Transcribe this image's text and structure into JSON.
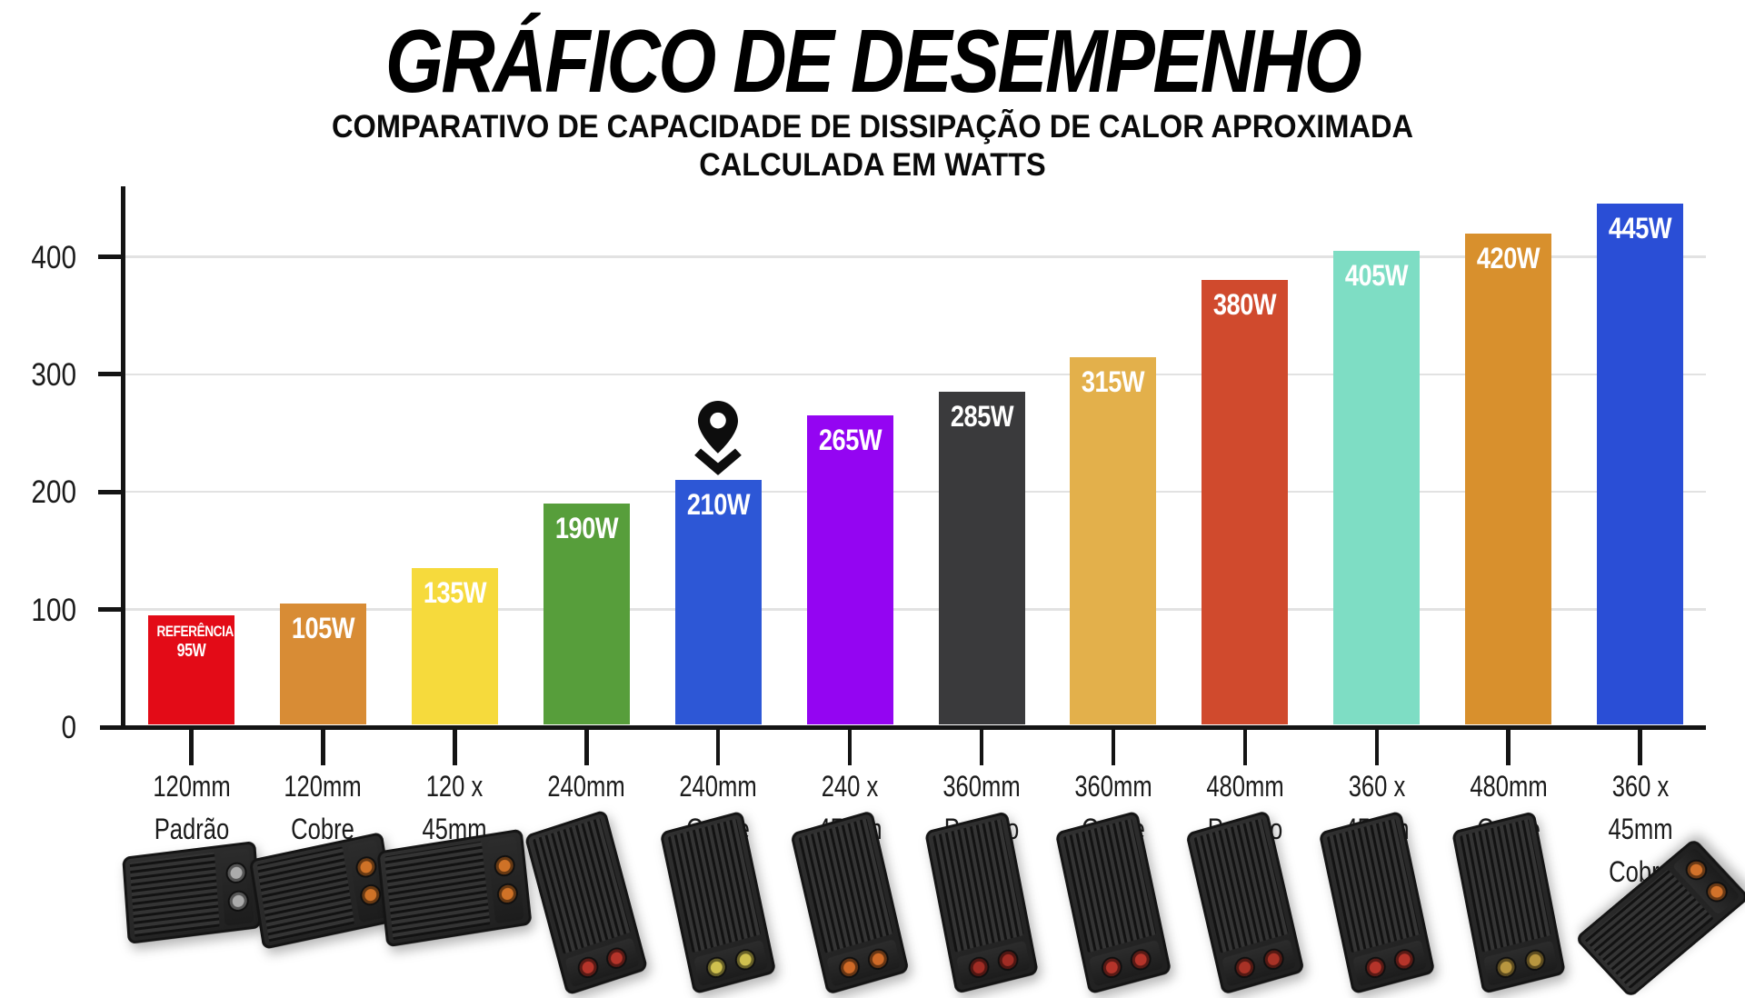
{
  "header": {
    "title": "GRÁFICO DE DESEMPENHO",
    "subtitle_line1": "COMPARATIVO DE CAPACIDADE DE DISSIPAÇÃO DE CALOR APROXIMADA",
    "subtitle_line2": "CALCULADA EM WATTS"
  },
  "chart_data": {
    "type": "bar",
    "title": "GRÁFICO DE DESEMPENHO",
    "subtitle": "COMPARATIVO DE CAPACIDADE DE DISSIPAÇÃO DE CALOR APROXIMADA CALCULADA EM WATTS",
    "unit": "watts",
    "ylim": [
      0,
      460
    ],
    "yticks": [
      0,
      100,
      200,
      300,
      400
    ],
    "grid": true,
    "legend_position": "none",
    "categories": [
      "120mm Padrão",
      "120mm Cobre",
      "120 x 45mm",
      "240mm",
      "240mm Cobre",
      "240 x 45mm",
      "360mm Padrão",
      "360mm Cobre",
      "480mm Padrão",
      "360 x 45mm",
      "480mm Cobre",
      "360 x 45mm Cobre"
    ],
    "values": [
      95,
      105,
      135,
      190,
      210,
      265,
      285,
      315,
      380,
      405,
      420,
      445
    ],
    "marker": {
      "icon": "location-pin-icon",
      "bar_category": "240mm Cobre",
      "bar_index": 4
    },
    "bars": [
      {
        "label_lines": [
          "120mm",
          "Padrão"
        ],
        "value": 95,
        "value_label": "95W",
        "value_prefix": "REFERÊNCIA",
        "color": "#e30b17",
        "marker": false,
        "product": {
          "shape": "small",
          "port_color": "#ababab"
        }
      },
      {
        "label_lines": [
          "120mm",
          "Cobre"
        ],
        "value": 105,
        "value_label": "105W",
        "color": "#d88c35",
        "marker": false,
        "product": {
          "shape": "small",
          "port_color": "#cf7227"
        }
      },
      {
        "label_lines": [
          "120 x",
          "45mm"
        ],
        "value": 135,
        "value_label": "135W",
        "color": "#f6da3c",
        "marker": false,
        "product": {
          "shape": "small",
          "port_color": "#cf7227"
        }
      },
      {
        "label_lines": [
          "240mm"
        ],
        "value": 190,
        "value_label": "190W",
        "color": "#579e3b",
        "marker": false,
        "product": {
          "shape": "long",
          "port_color": "#b5342a"
        }
      },
      {
        "label_lines": [
          "240mm",
          "Cobre"
        ],
        "value": 210,
        "value_label": "210W",
        "color": "#2d57d6",
        "marker": true,
        "product": {
          "shape": "long",
          "port_color": "#cfc04f"
        }
      },
      {
        "label_lines": [
          "240 x",
          "45mm"
        ],
        "value": 265,
        "value_label": "265W",
        "color": "#9405f2",
        "marker": false,
        "product": {
          "shape": "long",
          "port_color": "#cf6a27"
        }
      },
      {
        "label_lines": [
          "360mm",
          "Padrão"
        ],
        "value": 285,
        "value_label": "285W",
        "color": "#3a3a3c",
        "marker": false,
        "product": {
          "shape": "long",
          "port_color": "#a02c24"
        }
      },
      {
        "label_lines": [
          "360mm",
          "Cobre"
        ],
        "value": 315,
        "value_label": "315W",
        "color": "#e3b04b",
        "marker": false,
        "product": {
          "shape": "long",
          "port_color": "#b5342a"
        }
      },
      {
        "label_lines": [
          "480mm",
          "Padrão"
        ],
        "value": 380,
        "value_label": "380W",
        "color": "#d04a2d",
        "marker": false,
        "product": {
          "shape": "long",
          "port_color": "#a93226"
        }
      },
      {
        "label_lines": [
          "360 x",
          "45mm"
        ],
        "value": 405,
        "value_label": "405W",
        "color": "#7eddc4",
        "marker": false,
        "product": {
          "shape": "long",
          "port_color": "#b5342a"
        }
      },
      {
        "label_lines": [
          "480mm",
          "Cobre"
        ],
        "value": 420,
        "value_label": "420W",
        "color": "#d8902d",
        "marker": false,
        "product": {
          "shape": "long",
          "port_color": "#b8963f"
        }
      },
      {
        "label_lines": [
          "360 x",
          "45mm",
          "Cobre"
        ],
        "value": 445,
        "value_label": "445W",
        "color": "#2a4ed6",
        "marker": false,
        "product": {
          "shape": "diagonal",
          "port_color": "#d2722a"
        }
      }
    ]
  },
  "colors": {
    "background": "#ffffff",
    "axis": "#141414",
    "gridline": "#e2e2e2",
    "tick_label": "#1b1b1b",
    "bar_value_text": "#ffffff",
    "pin": "#0d0d0d",
    "radiator_body": "#262626"
  }
}
